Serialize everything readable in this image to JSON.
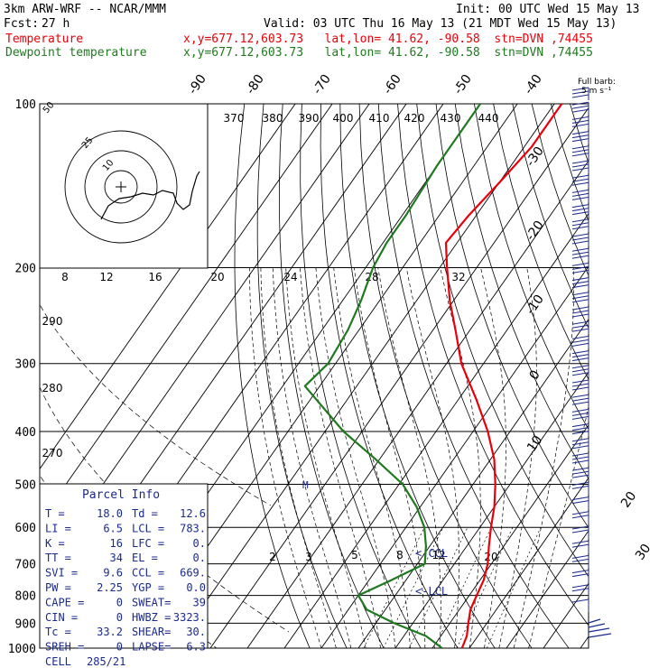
{
  "header": {
    "model": "3km ARW-WRF -- NCAR/MMM",
    "init": "Init: 00 UTC Wed 15 May 13",
    "fcst_label": "Fcst:",
    "fcst_value": "27 h",
    "valid": "Valid: 03 UTC Thu 16 May 13 (21 MDT Wed 15 May 13)",
    "temp_label": "Temperature",
    "temp_info": "x,y=677.12,603.73   lat,lon= 41.62, -90.58  stn=DVN ,74455",
    "dew_label": "Dewpoint temperature",
    "dew_info": "x,y=677.12,603.73   lat,lon= 41.62, -90.58  stn=DVN ,74455"
  },
  "colors": {
    "temperature": "#e8000b",
    "dewpoint": "#1f7a1f",
    "isobar": "#000000",
    "panel_text": "#1c2a8c"
  },
  "chart_data": {
    "type": "line",
    "title": "Skew-T log-P sounding",
    "pressure_ticks": [
      100,
      200,
      300,
      400,
      500,
      600,
      700,
      800,
      900,
      1000
    ],
    "skewed_isotherm_labels": [
      "-90",
      "-80",
      "-70",
      "-60",
      "-50",
      "-40",
      "-30",
      "-20",
      "-10",
      "0",
      "10",
      "20",
      "30",
      "40"
    ],
    "theta_labels": [
      "370",
      "380",
      "390",
      "400",
      "410",
      "420",
      "430",
      "440"
    ],
    "hodograph_speed_labels": [
      "8",
      "12",
      "16",
      "20",
      "24",
      "28",
      "32"
    ],
    "hodograph_kts_label": "kts",
    "hodograph_ring_labels": [
      "50",
      "25",
      "10"
    ],
    "mixing_ratio_labels": [
      "2",
      "3",
      "5",
      "8",
      "12",
      "20"
    ],
    "theta_e_labels": [
      "290",
      "280",
      "270"
    ],
    "wind_barb_legend": [
      "Full barb:",
      "5 m s⁻¹"
    ],
    "level_markers": {
      "ccl": "<-CCL",
      "lcl": "<-LCL",
      "el": "M"
    },
    "series": [
      {
        "name": "Temperature",
        "pressure": [
          100,
          120,
          140,
          160,
          180,
          200,
          230,
          260,
          300,
          350,
          400,
          450,
          500,
          550,
          600,
          650,
          700,
          750,
          800,
          850,
          900,
          950,
          1000
        ],
        "temperature_c": [
          -58,
          -58,
          -60,
          -62,
          -63,
          -58,
          -51,
          -44,
          -36,
          -25,
          -16,
          -9,
          -4,
          0,
          3,
          6,
          9,
          11,
          12,
          13,
          15,
          17,
          18
        ]
      },
      {
        "name": "Dewpoint temperature",
        "pressure": [
          100,
          130,
          160,
          180,
          200,
          230,
          260,
          300,
          330,
          400,
          450,
          500,
          550,
          600,
          650,
          700,
          750,
          800,
          850,
          900,
          950,
          1000
        ],
        "dewpoint_c": [
          -80,
          -80,
          -79,
          -79,
          -78,
          -75,
          -73,
          -72,
          -74,
          -55,
          -41,
          -29,
          -21,
          -15,
          -11,
          -8,
          -14,
          -20,
          -15,
          -5,
          6,
          12.6
        ]
      }
    ]
  },
  "parcel_info": {
    "title": "Parcel Info",
    "rows": [
      {
        "l1": "T",
        "v1": "18.0",
        "l2": "Td",
        "v2": "12.6"
      },
      {
        "l1": "LI",
        "v1": "6.5",
        "l2": "LCL",
        "v2": "783."
      },
      {
        "l1": "K",
        "v1": "16",
        "l2": "LFC",
        "v2": "0."
      },
      {
        "l1": "TT",
        "v1": "34",
        "l2": "EL",
        "v2": "0."
      },
      {
        "l1": "SVI",
        "v1": "9.6",
        "l2": "CCL",
        "v2": "669."
      },
      {
        "l1": "PW",
        "v1": "2.25",
        "l2": "YGP",
        "v2": "0.0"
      },
      {
        "l1": "CAPE",
        "v1": "0",
        "l2": "SWEAT",
        "v2": "39"
      },
      {
        "l1": "CIN",
        "v1": "0",
        "l2": "HWBZ",
        "v2": "3323."
      },
      {
        "l1": "Tc",
        "v1": "33.2",
        "l2": "SHEAR",
        "v2": "30."
      },
      {
        "l1": "SREH",
        "v1": "0",
        "l2": "LAPSE",
        "v2": "6.3"
      },
      {
        "l1": "CELL",
        "v1": "285/21",
        "l2": "",
        "v2": ""
      }
    ]
  }
}
